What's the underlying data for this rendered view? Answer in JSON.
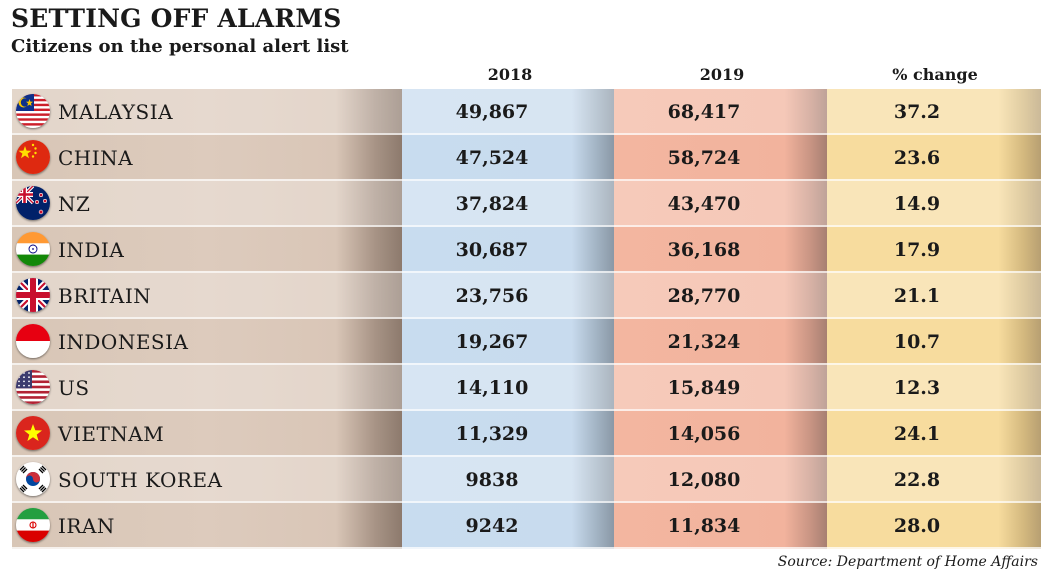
{
  "chart_data": {
    "type": "table",
    "title": "SETTING OFF ALARMS",
    "subtitle": "Citizens on the personal alert list",
    "columns": [
      "2018",
      "2019",
      "% change"
    ],
    "rows": [
      {
        "country": "MALAYSIA",
        "flag": "malaysia-flag-icon",
        "v2018": "49,867",
        "v2019": "68,417",
        "pct": "37.2"
      },
      {
        "country": "CHINA",
        "flag": "china-flag-icon",
        "v2018": "47,524",
        "v2019": "58,724",
        "pct": "23.6"
      },
      {
        "country": "NZ",
        "flag": "new-zealand-flag-icon",
        "v2018": "37,824",
        "v2019": "43,470",
        "pct": "14.9"
      },
      {
        "country": "INDIA",
        "flag": "india-flag-icon",
        "v2018": "30,687",
        "v2019": "36,168",
        "pct": "17.9"
      },
      {
        "country": "BRITAIN",
        "flag": "britain-flag-icon",
        "v2018": "23,756",
        "v2019": "28,770",
        "pct": "21.1"
      },
      {
        "country": "INDONESIA",
        "flag": "indonesia-flag-icon",
        "v2018": "19,267",
        "v2019": "21,324",
        "pct": "10.7"
      },
      {
        "country": "US",
        "flag": "us-flag-icon",
        "v2018": "14,110",
        "v2019": "15,849",
        "pct": "12.3"
      },
      {
        "country": "VIETNAM",
        "flag": "vietnam-flag-icon",
        "v2018": "11,329",
        "v2019": "14,056",
        "pct": "24.1"
      },
      {
        "country": "SOUTH KOREA",
        "flag": "south-korea-flag-icon",
        "v2018": "9838",
        "v2019": "12,080",
        "pct": "22.8"
      },
      {
        "country": "IRAN",
        "flag": "iran-flag-icon",
        "v2018": "9242",
        "v2019": "11,834",
        "pct": "28.0"
      }
    ],
    "source": "Source: Department of Home Affairs"
  },
  "colors": {
    "country_column": "#dccabc",
    "col_2018": "#c8dcef",
    "col_2019": "#f3b6a0",
    "col_pct": "#f7dc9e"
  }
}
